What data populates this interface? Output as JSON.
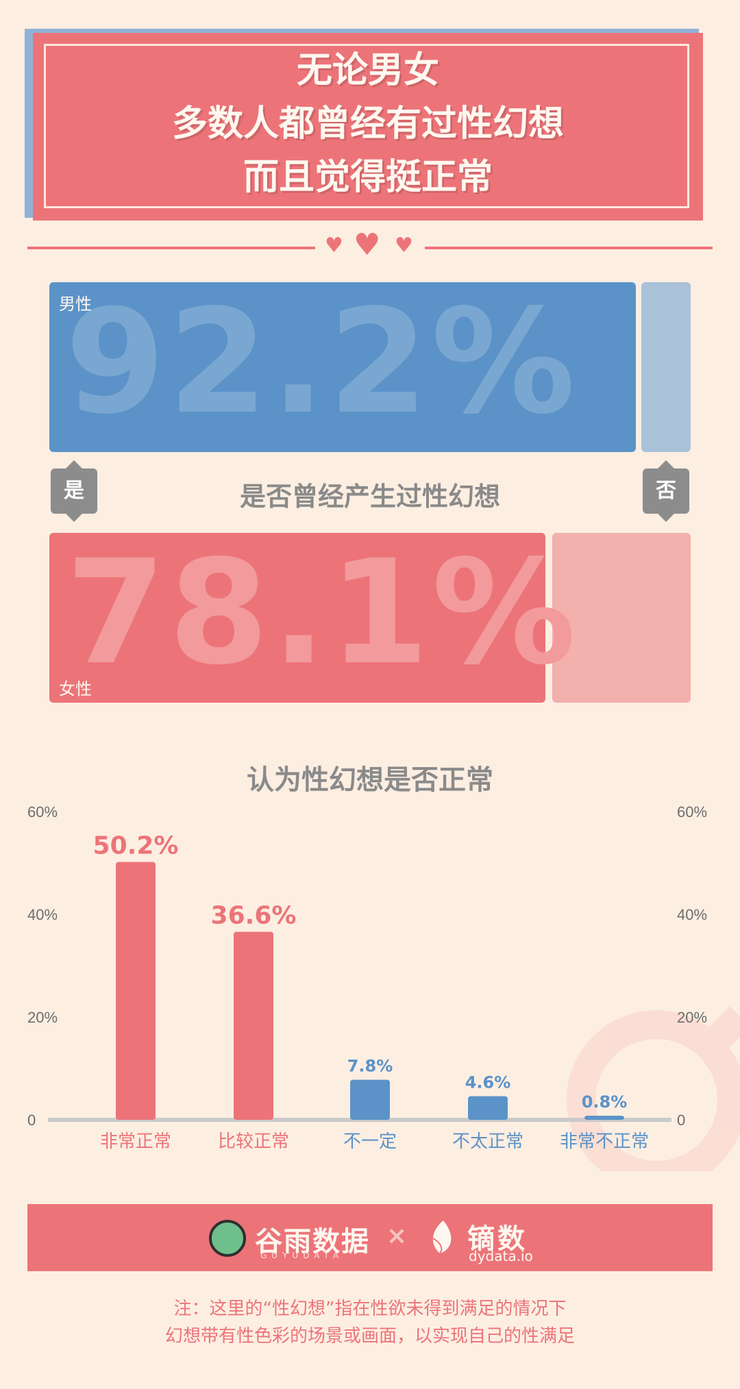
{
  "header": {
    "title_lines": [
      "无论男女",
      "多数人都曾经有过性幻想",
      "而且觉得挺正常"
    ]
  },
  "fantasy_question": {
    "question": "是否曾经产生过性幻想",
    "yes_label": "是",
    "no_label": "否",
    "male": {
      "label": "男性",
      "percent_text": "92.2%",
      "value": 92.2
    },
    "female": {
      "label": "女性",
      "percent_text": "78.1%",
      "value": 78.1
    }
  },
  "chart_data": {
    "type": "bar",
    "title": "认为性幻想是否正常",
    "categories": [
      "非常正常",
      "比较正常",
      "不一定",
      "不太正常",
      "非常不正常"
    ],
    "values": [
      50.2,
      36.6,
      7.8,
      4.6,
      0.8
    ],
    "data_labels": [
      "50.2%",
      "36.6%",
      "7.8%",
      "4.6%",
      "0.8%"
    ],
    "bar_colors": [
      "#ec7479",
      "#ec7479",
      "#5b93c8",
      "#5b93c8",
      "#5b93c8"
    ],
    "yticks": [
      "0",
      "20%",
      "40%",
      "60%"
    ],
    "ylim": [
      0,
      60
    ],
    "grid": false
  },
  "logos": {
    "logo1_name": "谷雨数据",
    "logo1_sub": "GUYUDATA",
    "separator": "×",
    "logo2_name": "镝数",
    "logo2_sub": "dydata.io"
  },
  "note": {
    "line1": "注：这里的“性幻想”指在性欲未得到满足的情况下",
    "line2": "幻想带有性色彩的场景或画面，以实现自己的性满足"
  },
  "colors": {
    "pink": "#ec7479",
    "blue": "#5b93c8",
    "background": "#fdeee2",
    "gray": "#8a8a8a"
  }
}
